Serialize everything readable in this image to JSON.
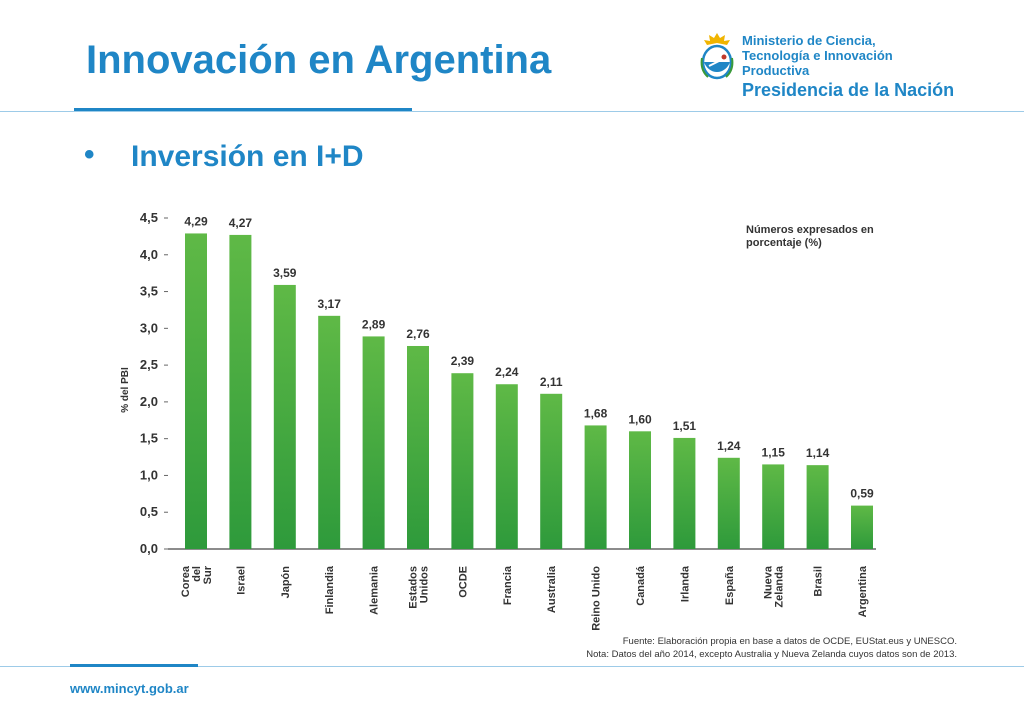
{
  "slide": {
    "title": "Innovación en Argentina",
    "bullet": "Inversión en I+D",
    "footer_url": "www.mincyt.gob.ar"
  },
  "logo": {
    "line1": "Ministerio de Ciencia,",
    "line2": "Tecnología e Innovación Productiva",
    "line3": "Presidencia de la Nación"
  },
  "chart_note": "Números expresados en porcentaje (%)",
  "footnotes": {
    "source": "Fuente: Elaboración propia en base a datos de OCDE, EUStat.eus y UNESCO.",
    "note": "Nota: Datos del año 2014, excepto Australia y Nueva Zelanda cuyos datos son de 2013."
  },
  "colors": {
    "accent": "#1f86c6",
    "bar_top": "#5fb946",
    "bar_bottom": "#2e9a3b",
    "axis": "#666666",
    "text": "#333333"
  },
  "chart_data": {
    "type": "bar",
    "ylabel": "% del PBI",
    "ylim": [
      0,
      4.5
    ],
    "yticks": [
      "0,0",
      "0,5",
      "1,0",
      "1,5",
      "2,0",
      "2,5",
      "3,0",
      "3,5",
      "4,0",
      "4,5"
    ],
    "categories": [
      "Corea del Sur",
      "Israel",
      "Japón",
      "Finlandia",
      "Alemania",
      "Estados Unidos",
      "OCDE",
      "Francia",
      "Australia",
      "Reino Unido",
      "Canadá",
      "Irlanda",
      "España",
      "Nueva Zelanda",
      "Brasil",
      "Argentina"
    ],
    "values": [
      4.29,
      4.27,
      3.59,
      3.17,
      2.89,
      2.76,
      2.39,
      2.24,
      2.11,
      1.68,
      1.6,
      1.51,
      1.24,
      1.15,
      1.14,
      0.59
    ],
    "labels": [
      "4,29",
      "4,27",
      "3,59",
      "3,17",
      "2,89",
      "2,76",
      "2,39",
      "2,24",
      "2,11",
      "1,68",
      "1,60",
      "1,51",
      "1,24",
      "1,15",
      "1,14",
      "0,59"
    ],
    "grid": false,
    "legend": "none"
  }
}
